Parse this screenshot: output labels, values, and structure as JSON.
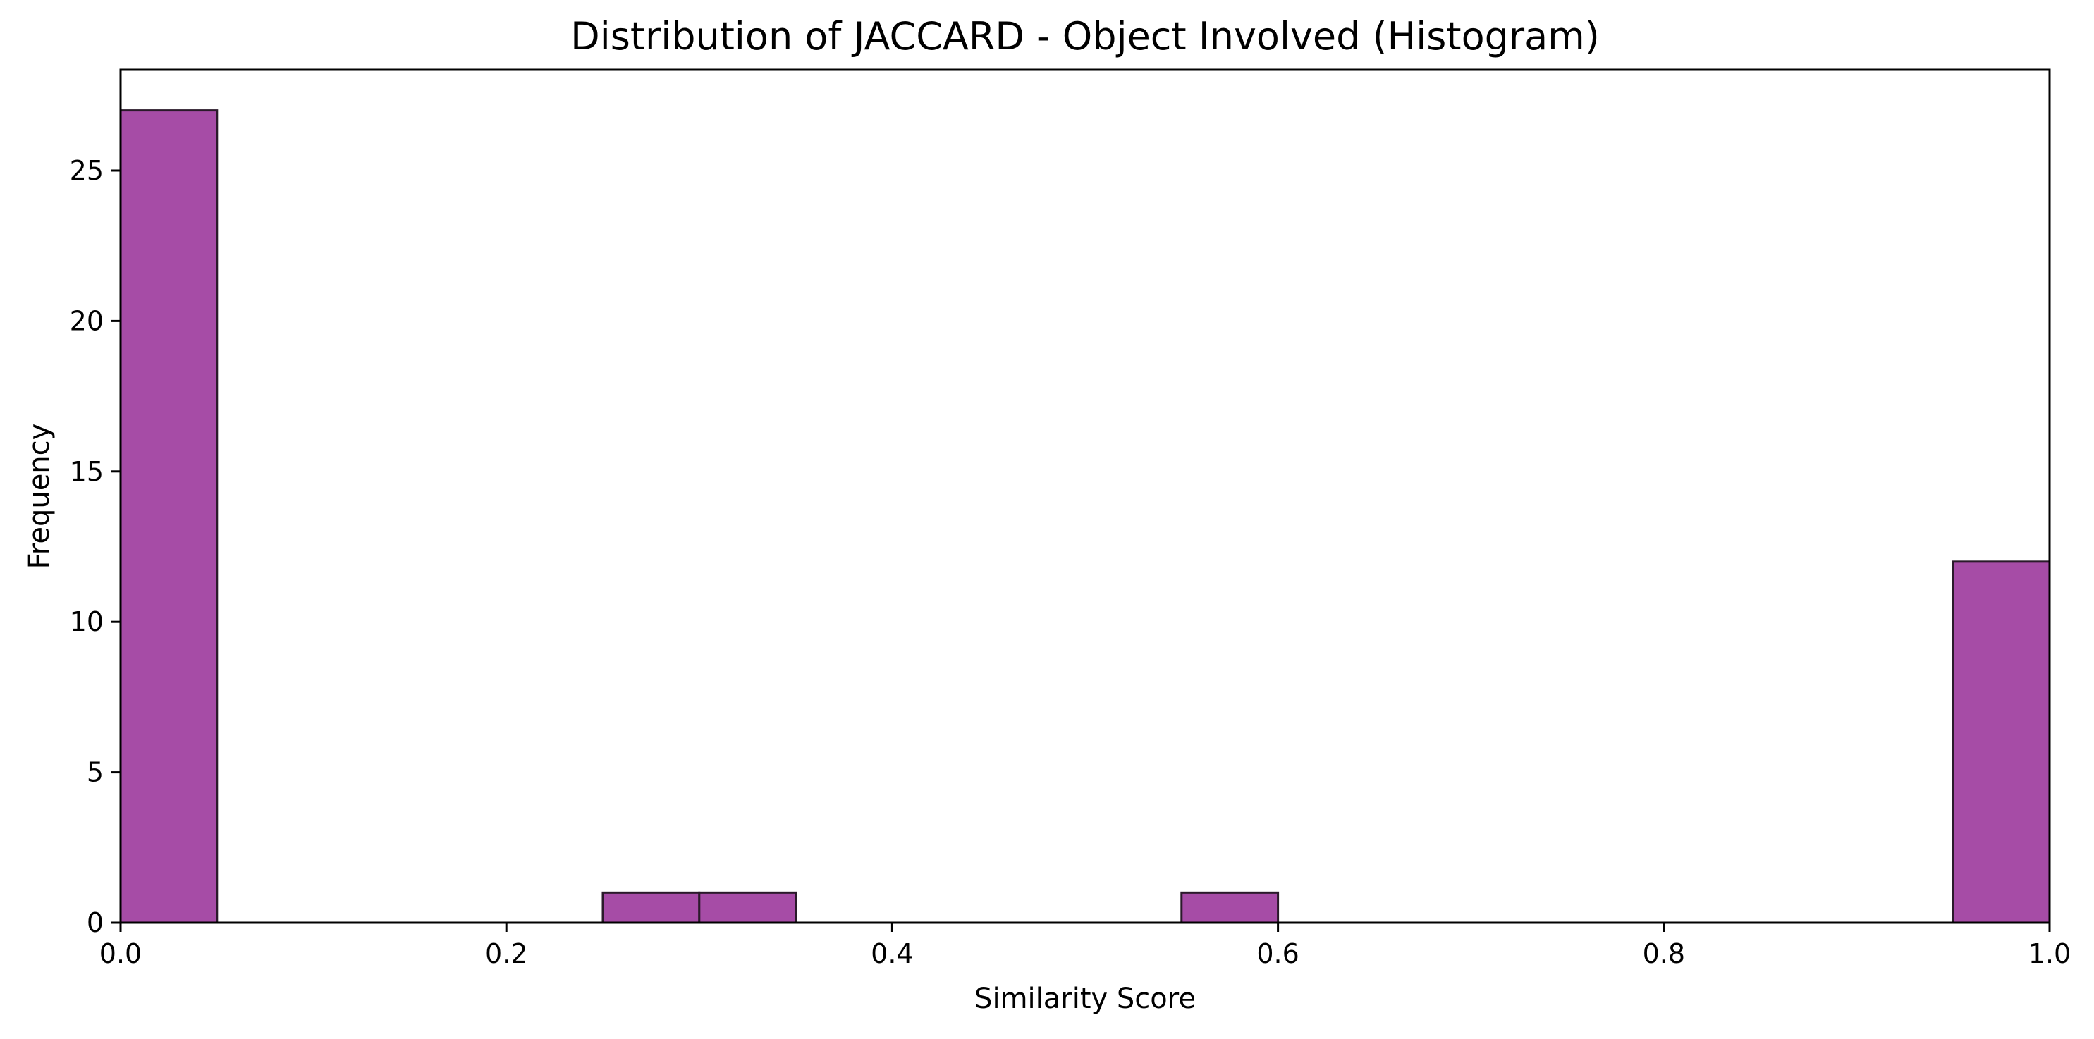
{
  "chart_data": {
    "type": "bar",
    "title": "Distribution of JACCARD - Object Involved (Histogram)",
    "xlabel": "Similarity Score",
    "ylabel": "Frequency",
    "xlim": [
      0,
      1
    ],
    "ylim": [
      0,
      28.35
    ],
    "x_ticks": [
      {
        "value": 0.0,
        "label": "0.0"
      },
      {
        "value": 0.2,
        "label": "0.2"
      },
      {
        "value": 0.4,
        "label": "0.4"
      },
      {
        "value": 0.6,
        "label": "0.6"
      },
      {
        "value": 0.8,
        "label": "0.8"
      },
      {
        "value": 1.0,
        "label": "1.0"
      }
    ],
    "y_ticks": [
      {
        "value": 0,
        "label": "0"
      },
      {
        "value": 5,
        "label": "5"
      },
      {
        "value": 10,
        "label": "10"
      },
      {
        "value": 15,
        "label": "15"
      },
      {
        "value": 20,
        "label": "20"
      },
      {
        "value": 25,
        "label": "25"
      }
    ],
    "bins": [
      {
        "x0": 0.0,
        "x1": 0.05,
        "count": 27
      },
      {
        "x0": 0.25,
        "x1": 0.3,
        "count": 1
      },
      {
        "x0": 0.3,
        "x1": 0.35,
        "count": 1
      },
      {
        "x0": 0.55,
        "x1": 0.6,
        "count": 1
      },
      {
        "x0": 0.95,
        "x1": 1.0,
        "count": 12
      }
    ],
    "grid": false,
    "colors": {
      "bar_fill": "#a64ca6",
      "bar_edge": "#2a1a2a",
      "axis": "#000000"
    }
  }
}
